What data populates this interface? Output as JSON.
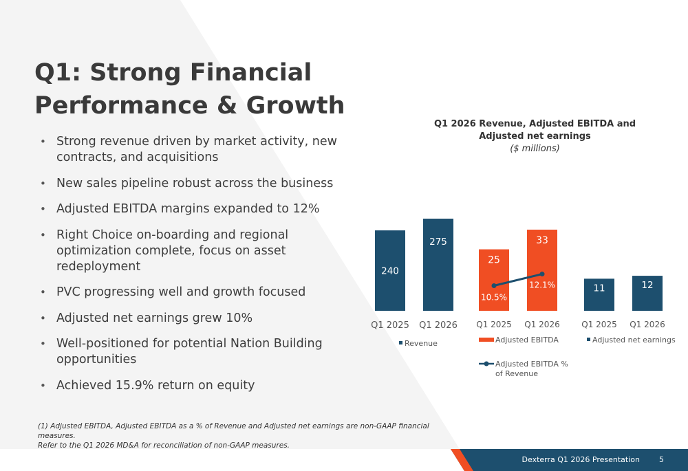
{
  "slide": {
    "title": "Q1: Strong Financial Performance & Growth",
    "bullets": [
      "Strong revenue driven by market activity, new contracts, and acquisitions",
      "New sales pipeline robust across the business",
      "Adjusted EBITDA margins expanded to 12%",
      "Right Choice on-boarding and regional optimization complete, focus on asset redeployment",
      "PVC progressing well and growth focused",
      "Adjusted net earnings grew 10%",
      "Well-positioned for potential Nation Building opportunities",
      "Achieved 15.9% return on equity"
    ],
    "footnote_line1": "(1) Adjusted EBITDA, Adjusted EBITDA as a % of Revenue and Adjusted net earnings are non-GAAP financial measures.",
    "footnote_line2": "Refer to the Q1 2026 MD&A for reconciliation of non-GAAP measures.",
    "footer_text": "Dexterra Q1 2026 Presentation",
    "page_number": "5"
  },
  "colors": {
    "navy": "#1d4f6e",
    "orange": "#f04e23",
    "text": "#3d3d3d",
    "background_shape": "#f4f4f4"
  },
  "chart_data": {
    "title_line1": "Q1 2026 Revenue, Adjusted EBITDA and",
    "title_line2": "Adjusted net earnings",
    "subtitle": "($ millions)",
    "panels": [
      {
        "type": "bar",
        "categories": [
          "Q1 2025",
          "Q1 2026"
        ],
        "series": [
          {
            "name": "Revenue",
            "values": [
              240,
              275
            ],
            "color": "#1d4f6e"
          }
        ],
        "ylim": [
          0,
          300
        ],
        "legend": "Revenue"
      },
      {
        "type": "bar",
        "categories": [
          "Q1 2025",
          "Q1 2026"
        ],
        "series": [
          {
            "name": "Adjusted EBITDA",
            "values": [
              25,
              33
            ],
            "color": "#f04e23"
          },
          {
            "name": "Adjusted EBITDA % of Revenue",
            "type": "line",
            "values": [
              10.5,
              12.1
            ],
            "labels": [
              "10.5%",
              "12.1%"
            ],
            "color": "#1d4f6e"
          }
        ],
        "ylim": [
          0,
          36
        ],
        "legend": [
          "Adjusted EBITDA",
          "Adjusted EBITDA %",
          "of Revenue"
        ]
      },
      {
        "type": "bar",
        "categories": [
          "Q1 2025",
          "Q1 2026"
        ],
        "series": [
          {
            "name": "Adjusted net earnings",
            "values": [
              11,
              12
            ],
            "color": "#1d4f6e"
          }
        ],
        "ylim": [
          0,
          36
        ],
        "legend": "Adjusted net earnings"
      }
    ]
  }
}
